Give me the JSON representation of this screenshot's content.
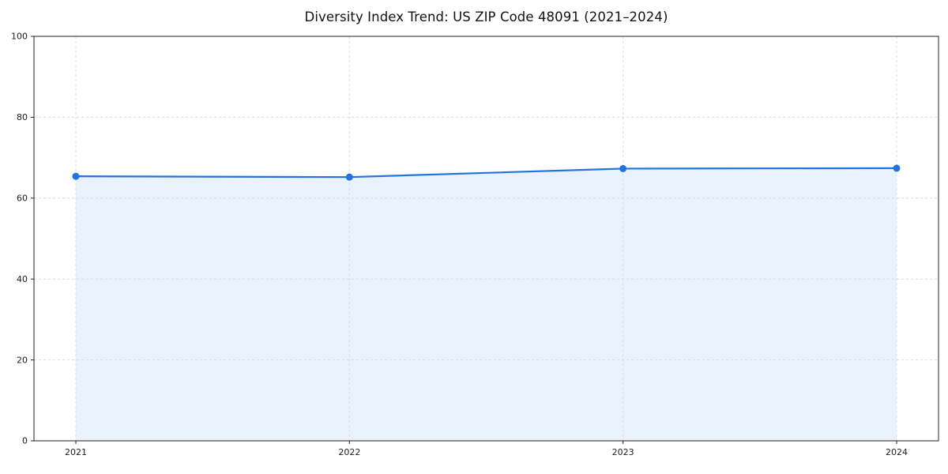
{
  "chart_data": {
    "type": "line",
    "title": "Diversity Index Trend: US ZIP Code 48091 (2021–2024)",
    "x": [
      2021,
      2022,
      2023,
      2024
    ],
    "series": [
      {
        "name": "Diversity Index",
        "values": [
          65.4,
          65.2,
          67.3,
          67.4
        ]
      }
    ],
    "xlabel": "",
    "ylabel": "",
    "ylim": [
      0,
      100
    ],
    "yticks": [
      0,
      20,
      40,
      60,
      80,
      100
    ],
    "grid": true,
    "grid_style": "dashed",
    "legend": "none",
    "colors": {
      "line": "#2273dd",
      "marker": "#2273dd",
      "area_fill": "#e8f1fd",
      "grid": "#dcdcdc",
      "spine": "#222222",
      "background": "#ffffff"
    }
  }
}
